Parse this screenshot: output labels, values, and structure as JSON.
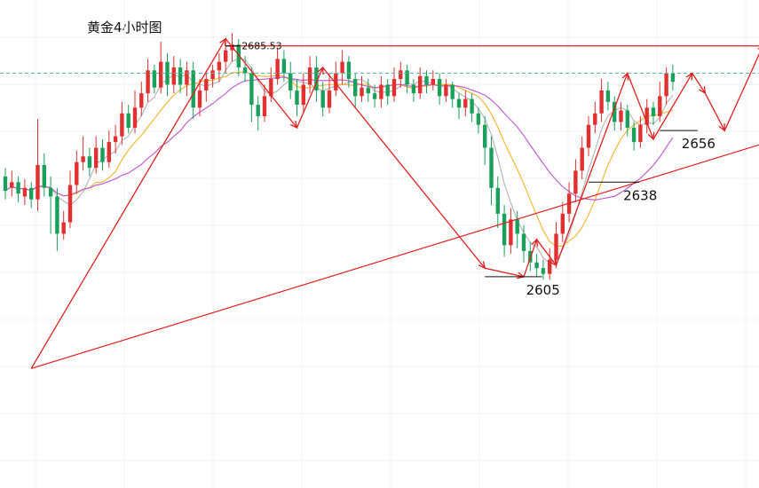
{
  "chart_data": {
    "type": "candlestick",
    "title": "黄金4小时图",
    "colors": {
      "up": "#e03030",
      "down": "#1aa05a",
      "ma_fast": "#b8b8b8",
      "ma_mid": "#f2b83a",
      "ma_slow": "#c060d0",
      "trend": "#e02020",
      "support": "#111111",
      "resistance_dash": "#5ab8a8"
    },
    "price_scale": {
      "y_top": 2700,
      "y_bottom": 2570
    },
    "resistance_label": "2685.53",
    "resistance_level": 2685.53,
    "dashed_level": 2676,
    "levels": [
      {
        "label": "2605",
        "value": 2605
      },
      {
        "label": "2638",
        "value": 2638
      },
      {
        "label": "2656",
        "value": 2656
      }
    ],
    "candles": [
      [
        2640,
        2635,
        2643,
        2632
      ],
      [
        2636,
        2638,
        2642,
        2633
      ],
      [
        2638,
        2634,
        2640,
        2631
      ],
      [
        2633,
        2636,
        2639,
        2630
      ],
      [
        2636,
        2632,
        2638,
        2629
      ],
      [
        2632,
        2644,
        2660,
        2628
      ],
      [
        2644,
        2636,
        2648,
        2633
      ],
      [
        2636,
        2633,
        2640,
        2620
      ],
      [
        2633,
        2620,
        2636,
        2614
      ],
      [
        2620,
        2624,
        2628,
        2618
      ],
      [
        2624,
        2637,
        2642,
        2622
      ],
      [
        2637,
        2645,
        2649,
        2634
      ],
      [
        2645,
        2647,
        2654,
        2642
      ],
      [
        2647,
        2643,
        2650,
        2640
      ],
      [
        2643,
        2650,
        2654,
        2641
      ],
      [
        2650,
        2645,
        2653,
        2642
      ],
      [
        2645,
        2652,
        2656,
        2643
      ],
      [
        2652,
        2654,
        2658,
        2648
      ],
      [
        2654,
        2662,
        2666,
        2651
      ],
      [
        2662,
        2657,
        2665,
        2655
      ],
      [
        2657,
        2664,
        2670,
        2655
      ],
      [
        2664,
        2669,
        2673,
        2661
      ],
      [
        2669,
        2677,
        2681,
        2666
      ],
      [
        2677,
        2671,
        2679,
        2669
      ],
      [
        2671,
        2680,
        2687,
        2669
      ],
      [
        2680,
        2672,
        2683,
        2668
      ],
      [
        2672,
        2678,
        2682,
        2669
      ],
      [
        2678,
        2672,
        2681,
        2669
      ],
      [
        2672,
        2677,
        2680,
        2668
      ],
      [
        2677,
        2664,
        2680,
        2660
      ],
      [
        2664,
        2670,
        2674,
        2661
      ],
      [
        2670,
        2674,
        2677,
        2666
      ],
      [
        2674,
        2677,
        2679,
        2671
      ],
      [
        2677,
        2680,
        2683,
        2673
      ],
      [
        2680,
        2684,
        2687,
        2676
      ],
      [
        2684,
        2686,
        2690,
        2680
      ],
      [
        2686,
        2678,
        2688,
        2675
      ],
      [
        2678,
        2676,
        2682,
        2673
      ],
      [
        2676,
        2665,
        2678,
        2659
      ],
      [
        2665,
        2661,
        2668,
        2656
      ],
      [
        2661,
        2668,
        2672,
        2659
      ],
      [
        2668,
        2674,
        2678,
        2666
      ],
      [
        2674,
        2681,
        2685,
        2672
      ],
      [
        2681,
        2676,
        2684,
        2673
      ],
      [
        2676,
        2670,
        2680,
        2667
      ],
      [
        2670,
        2665,
        2674,
        2661
      ],
      [
        2665,
        2672,
        2676,
        2662
      ],
      [
        2672,
        2678,
        2682,
        2669
      ],
      [
        2678,
        2670,
        2682,
        2666
      ],
      [
        2670,
        2664,
        2673,
        2661
      ],
      [
        2664,
        2670,
        2676,
        2662
      ],
      [
        2670,
        2676,
        2680,
        2668
      ],
      [
        2676,
        2680,
        2684,
        2672
      ],
      [
        2680,
        2674,
        2682,
        2671
      ],
      [
        2674,
        2668,
        2676,
        2664
      ],
      [
        2668,
        2671,
        2675,
        2666
      ],
      [
        2671,
        2669,
        2674,
        2666
      ],
      [
        2669,
        2667,
        2672,
        2664
      ],
      [
        2667,
        2672,
        2675,
        2664
      ],
      [
        2672,
        2668,
        2674,
        2665
      ],
      [
        2668,
        2674,
        2678,
        2666
      ],
      [
        2674,
        2677,
        2680,
        2671
      ],
      [
        2677,
        2672,
        2679,
        2669
      ],
      [
        2672,
        2669,
        2674,
        2666
      ],
      [
        2669,
        2675,
        2678,
        2667
      ],
      [
        2675,
        2672,
        2677,
        2669
      ],
      [
        2672,
        2674,
        2677,
        2670
      ],
      [
        2674,
        2668,
        2676,
        2665
      ],
      [
        2668,
        2672,
        2674,
        2666
      ],
      [
        2672,
        2667,
        2673,
        2664
      ],
      [
        2667,
        2664,
        2669,
        2660
      ],
      [
        2664,
        2667,
        2670,
        2661
      ],
      [
        2667,
        2662,
        2669,
        2659
      ],
      [
        2662,
        2658,
        2664,
        2655
      ],
      [
        2658,
        2650,
        2661,
        2644
      ],
      [
        2650,
        2636,
        2654,
        2630
      ],
      [
        2636,
        2627,
        2640,
        2622
      ],
      [
        2627,
        2616,
        2630,
        2612
      ],
      [
        2616,
        2625,
        2629,
        2613
      ],
      [
        2625,
        2620,
        2628,
        2615
      ],
      [
        2620,
        2614,
        2623,
        2610
      ],
      [
        2614,
        2610,
        2617,
        2607
      ],
      [
        2610,
        2608,
        2613,
        2605
      ],
      [
        2608,
        2606,
        2611,
        2604
      ],
      [
        2606,
        2611,
        2615,
        2604
      ],
      [
        2611,
        2620,
        2624,
        2608
      ],
      [
        2620,
        2627,
        2631,
        2617
      ],
      [
        2627,
        2634,
        2638,
        2624
      ],
      [
        2634,
        2642,
        2646,
        2631
      ],
      [
        2642,
        2650,
        2654,
        2639
      ],
      [
        2650,
        2658,
        2661,
        2647
      ],
      [
        2658,
        2662,
        2666,
        2655
      ],
      [
        2662,
        2670,
        2674,
        2659
      ],
      [
        2670,
        2666,
        2673,
        2663
      ],
      [
        2666,
        2659,
        2668,
        2656
      ],
      [
        2659,
        2663,
        2666,
        2656
      ],
      [
        2663,
        2657,
        2665,
        2654
      ],
      [
        2657,
        2652,
        2659,
        2649
      ],
      [
        2652,
        2658,
        2661,
        2650
      ],
      [
        2658,
        2664,
        2667,
        2655
      ],
      [
        2664,
        2661,
        2666,
        2658
      ],
      [
        2661,
        2668,
        2673,
        2659
      ],
      [
        2668,
        2676,
        2678,
        2665
      ],
      [
        2676,
        2673,
        2679,
        2670
      ]
    ]
  }
}
